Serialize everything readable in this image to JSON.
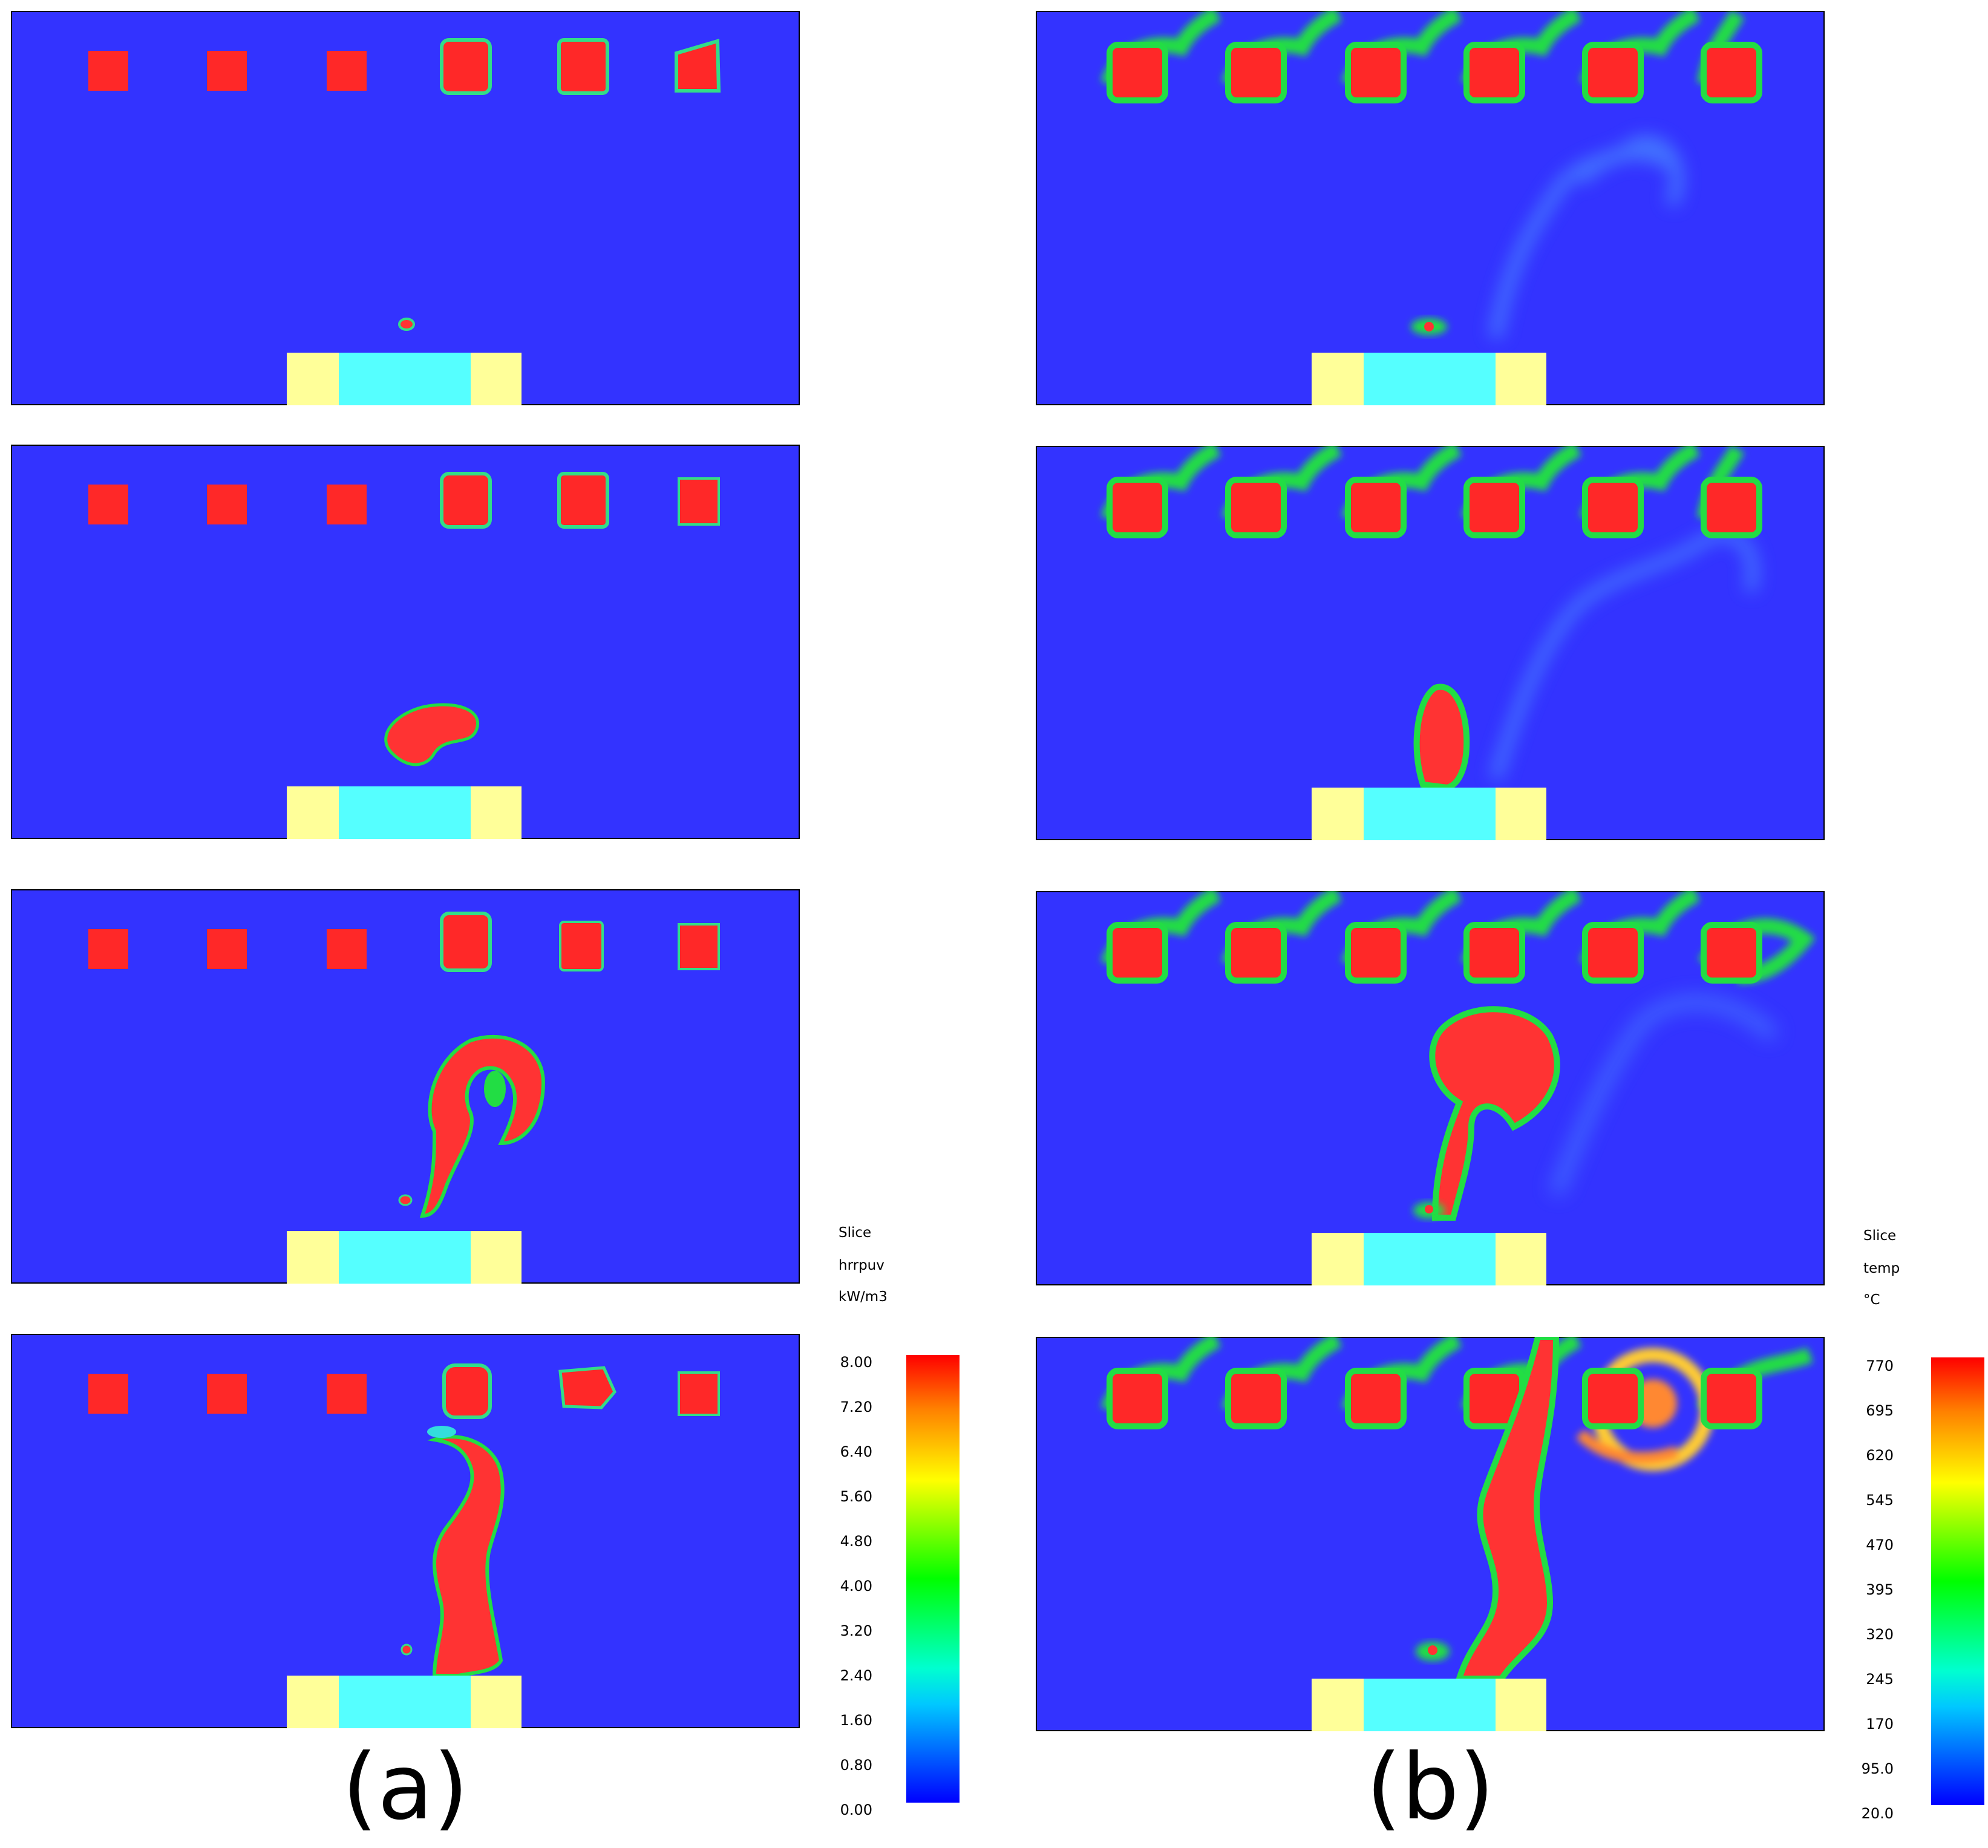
{
  "figure": {
    "captions": [
      "(a)",
      "(b)"
    ],
    "colors": {
      "domain": "#3333ff",
      "fire_core": "#ff3333",
      "green_edge": "#22dd44",
      "cyan_edge": "#33dddd",
      "source_side": "#ffff99",
      "source_center": "#55ffff"
    }
  },
  "colorbar_a": {
    "title_lines": [
      "Slice",
      "hrrpuv",
      "kW/m3"
    ],
    "ticks": [
      "8.00",
      "7.20",
      "6.40",
      "5.60",
      "4.80",
      "4.00",
      "3.20",
      "2.40",
      "1.60",
      "0.80",
      "0.00"
    ]
  },
  "colorbar_b": {
    "title_lines": [
      "Slice",
      "temp",
      "°C"
    ],
    "ticks": [
      "770",
      "695",
      "620",
      "545",
      "470",
      "395",
      "320",
      "245",
      "170",
      "95.0",
      "20.0"
    ]
  }
}
